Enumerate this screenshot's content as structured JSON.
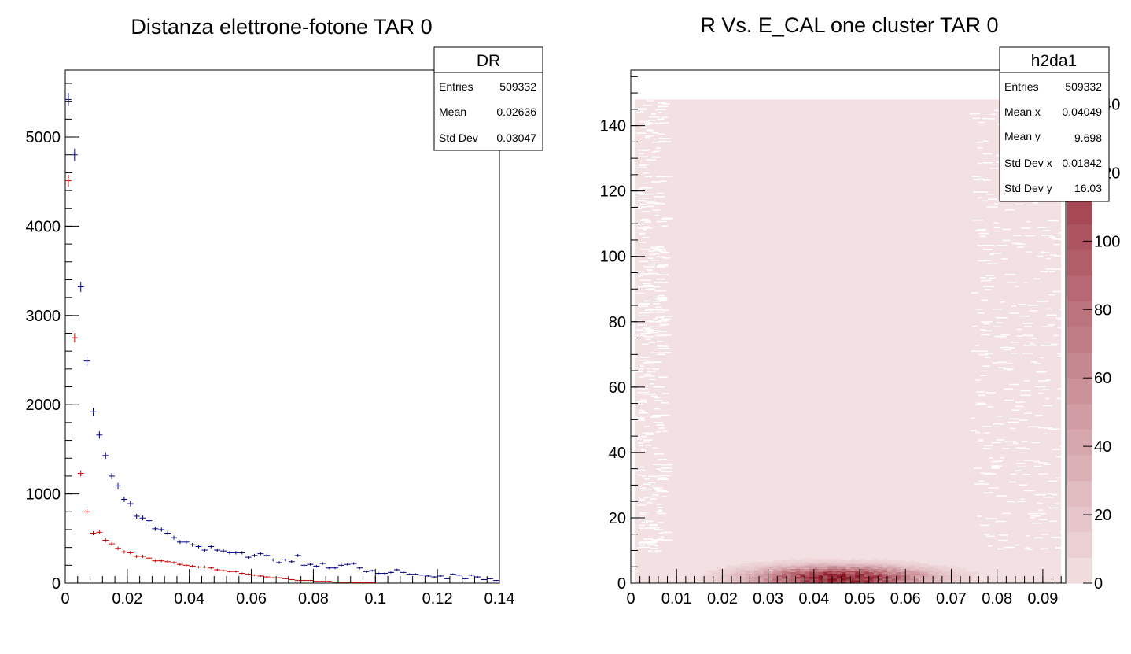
{
  "chart_data": [
    {
      "type": "histogram",
      "title": "Distanza elettrone-fotone TAR 0",
      "xlabel": "",
      "ylabel": "",
      "xlim": [
        0,
        0.14
      ],
      "ylim": [
        0,
        5750
      ],
      "x_ticks": [
        "0",
        "0.02",
        "0.04",
        "0.06",
        "0.08",
        "0.1",
        "0.12",
        "0.14"
      ],
      "y_ticks": [
        "0",
        "1000",
        "2000",
        "3000",
        "4000",
        "5000"
      ],
      "stats_box": {
        "name": "DR",
        "rows": [
          {
            "label": "Entries",
            "value": "509332"
          },
          {
            "label": "Mean",
            "value": "0.02636"
          },
          {
            "label": "Std Dev",
            "value": "0.03047"
          }
        ]
      },
      "series": [
        {
          "color": "#000080",
          "bin_width": 0.002,
          "x": [
            0.001,
            0.003,
            0.005,
            0.007,
            0.009,
            0.011,
            0.013,
            0.015,
            0.017,
            0.019,
            0.021,
            0.023,
            0.025,
            0.027,
            0.029,
            0.031,
            0.033,
            0.035,
            0.037,
            0.039,
            0.041,
            0.043,
            0.045,
            0.047,
            0.049,
            0.051,
            0.053,
            0.055,
            0.057,
            0.059,
            0.061,
            0.063,
            0.065,
            0.067,
            0.069,
            0.071,
            0.073,
            0.075,
            0.077,
            0.079,
            0.081,
            0.083,
            0.085,
            0.087,
            0.089,
            0.091,
            0.093,
            0.095,
            0.097,
            0.099,
            0.101,
            0.103,
            0.105,
            0.107,
            0.109,
            0.111,
            0.113,
            0.115,
            0.117,
            0.119,
            0.121,
            0.123,
            0.125,
            0.127,
            0.129,
            0.131,
            0.133,
            0.135,
            0.137,
            0.139
          ],
          "y": [
            5420,
            4800,
            3320,
            2490,
            1920,
            1660,
            1430,
            1200,
            1090,
            940,
            890,
            750,
            730,
            700,
            610,
            600,
            560,
            510,
            460,
            460,
            430,
            410,
            370,
            410,
            370,
            360,
            340,
            340,
            340,
            290,
            310,
            330,
            310,
            260,
            230,
            260,
            240,
            310,
            200,
            210,
            190,
            220,
            170,
            170,
            200,
            210,
            220,
            170,
            130,
            140,
            110,
            110,
            120,
            150,
            120,
            100,
            100,
            90,
            80,
            70,
            80,
            50,
            100,
            90,
            50,
            90,
            70,
            40,
            50,
            30
          ]
        },
        {
          "color": "#cc0000",
          "bin_width": 0.002,
          "x": [
            0.001,
            0.003,
            0.005,
            0.007,
            0.009,
            0.011,
            0.013,
            0.015,
            0.017,
            0.019,
            0.021,
            0.023,
            0.025,
            0.027,
            0.029,
            0.031,
            0.033,
            0.035,
            0.037,
            0.039,
            0.041,
            0.043,
            0.045,
            0.047,
            0.049,
            0.051,
            0.053,
            0.055,
            0.057,
            0.059,
            0.061,
            0.063,
            0.065,
            0.067,
            0.069,
            0.071,
            0.073,
            0.075,
            0.077,
            0.079,
            0.081,
            0.083,
            0.085,
            0.087,
            0.089,
            0.091,
            0.093,
            0.095,
            0.097,
            0.099
          ],
          "y": [
            4510,
            2750,
            1230,
            800,
            560,
            570,
            480,
            440,
            390,
            350,
            340,
            300,
            300,
            280,
            250,
            250,
            240,
            230,
            210,
            200,
            190,
            180,
            180,
            170,
            150,
            140,
            130,
            130,
            110,
            100,
            90,
            80,
            70,
            60,
            60,
            50,
            40,
            30,
            30,
            30,
            20,
            20,
            20,
            10,
            10,
            10,
            5,
            5,
            5,
            5
          ]
        }
      ]
    },
    {
      "type": "heatmap",
      "title": "R Vs. E_CAL one cluster TAR 0",
      "xlabel": "",
      "ylabel": "",
      "xlim": [
        0,
        0.095
      ],
      "ylim": [
        0,
        157
      ],
      "x_ticks": [
        "0",
        "0.01",
        "0.02",
        "0.03",
        "0.04",
        "0.05",
        "0.06",
        "0.07",
        "0.08",
        "0.09"
      ],
      "y_ticks": [
        "0",
        "20",
        "40",
        "60",
        "80",
        "100",
        "120",
        "140"
      ],
      "z_ticks": [
        "0",
        "20",
        "40",
        "60",
        "80",
        "100",
        "120",
        "140"
      ],
      "zlim": [
        0,
        150
      ],
      "color_low": "#f3e0e2",
      "color_high": "#8a1020",
      "populated_region": {
        "x": [
          0.001,
          0.094
        ],
        "y": [
          0,
          148
        ]
      },
      "hotspot": {
        "x": 0.045,
        "y": 1.5,
        "max": 140
      },
      "stats_box": {
        "name": "h2da1",
        "rows": [
          {
            "label": "Entries",
            "value": "509332"
          },
          {
            "label": "Mean x",
            "value": "0.04049"
          },
          {
            "label": "Mean y",
            "value": "9.698"
          },
          {
            "label": "Std Dev x",
            "value": "0.01842"
          },
          {
            "label": "Std Dev y",
            "value": "16.03"
          }
        ]
      }
    }
  ]
}
